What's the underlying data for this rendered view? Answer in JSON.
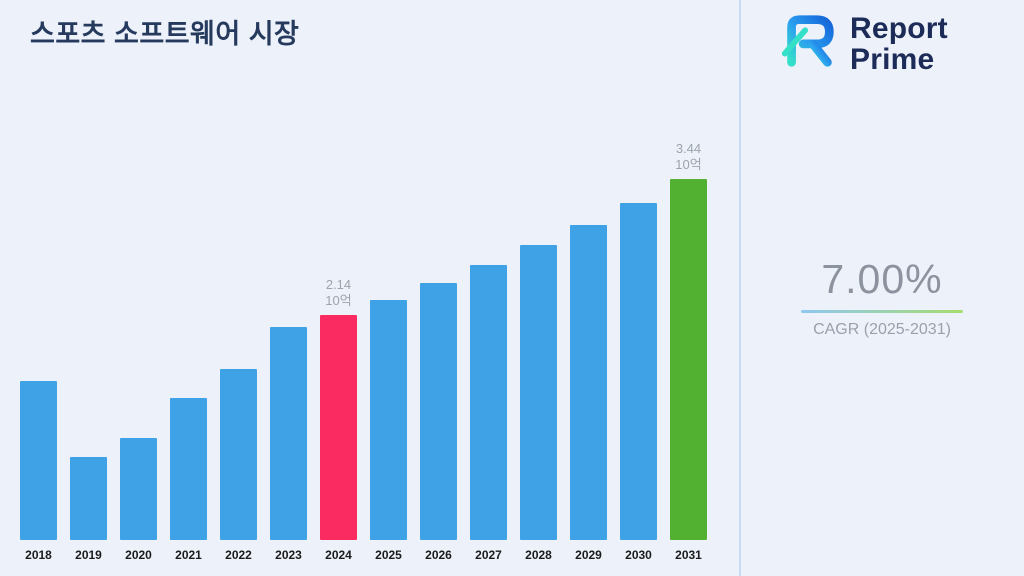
{
  "title": "스포츠 소프트웨어 시장",
  "logo": {
    "line1": "Report",
    "line2": "Prime"
  },
  "stats": {
    "value": "7.00%",
    "label": "CAGR (2025-2031)"
  },
  "chart_data": {
    "type": "bar",
    "categories": [
      "2018",
      "2019",
      "2020",
      "2021",
      "2022",
      "2023",
      "2024",
      "2025",
      "2026",
      "2027",
      "2028",
      "2029",
      "2030",
      "2031"
    ],
    "values": [
      1.51,
      0.79,
      0.97,
      1.35,
      1.63,
      2.03,
      2.14,
      2.29,
      2.45,
      2.62,
      2.81,
      3.0,
      3.21,
      3.44
    ],
    "unit": "10억",
    "title": "스포츠 소프트웨어 시장",
    "xlabel": "",
    "ylabel": "",
    "ylim": [
      0,
      3.8
    ],
    "grid": false,
    "legend": "none",
    "bar_color": "#3FA2E6",
    "color_overrides": {
      "2024": "#FA2B60",
      "2031": "#52B131"
    },
    "annotations": [
      {
        "category": "2024",
        "value_label": "2.14",
        "unit_label": "10억"
      },
      {
        "category": "2031",
        "value_label": "3.44",
        "unit_label": "10억"
      }
    ]
  },
  "colors": {
    "background": "#EDF2FA",
    "title_text": "#263A5E",
    "divider": "#C7DCF4",
    "stat_text": "#8D939E",
    "accent_gradient_start": "#8FC7F2",
    "accent_gradient_end": "#A6DC6E"
  }
}
